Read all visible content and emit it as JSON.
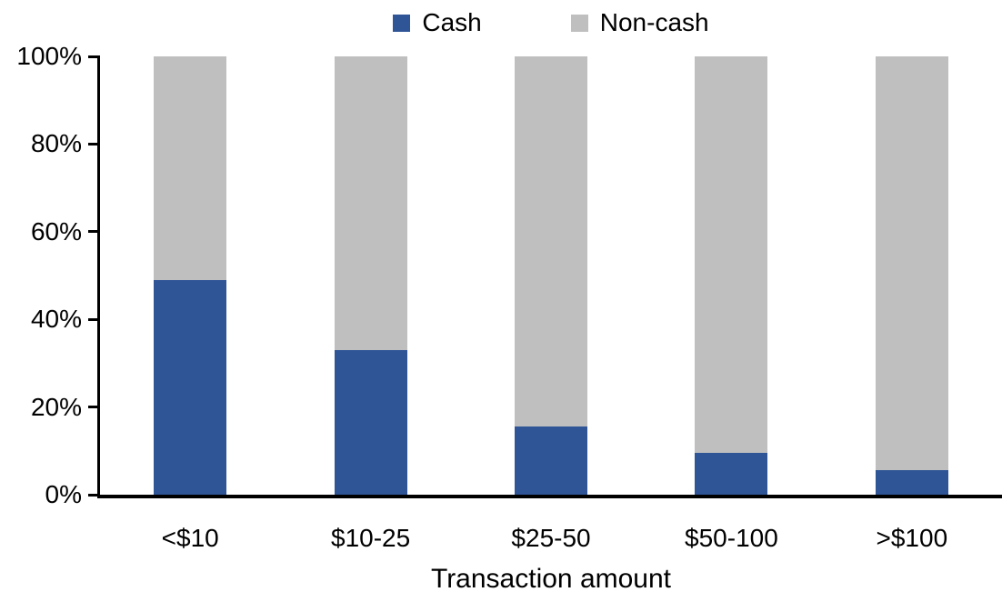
{
  "chart_data": {
    "type": "bar",
    "stacked": true,
    "percent_stacked": true,
    "title": "",
    "xlabel": "Transaction amount",
    "ylabel": "",
    "categories": [
      "<$10",
      "$10-25",
      "$25-50",
      "$50-100",
      ">$100"
    ],
    "series": [
      {
        "name": "Cash",
        "color": "#2F5597",
        "values": [
          49,
          33,
          15.5,
          9.5,
          5.5
        ]
      },
      {
        "name": "Non-cash",
        "color": "#BFBFBF",
        "values": [
          51,
          67,
          84.5,
          90.5,
          94.5
        ]
      }
    ],
    "y_axis": {
      "min": 0,
      "max": 100,
      "tick_step": 20,
      "tick_labels": [
        "0%",
        "20%",
        "40%",
        "60%",
        "80%",
        "100%"
      ]
    },
    "legend": {
      "position": "top",
      "items": [
        "Cash",
        "Non-cash"
      ]
    },
    "grid": false,
    "axis_color": "#000000",
    "background_color": "#FFFFFF"
  }
}
